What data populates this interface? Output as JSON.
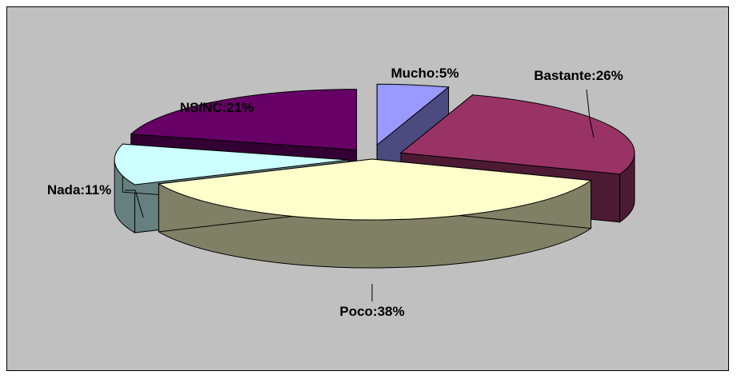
{
  "chart_data": {
    "type": "pie",
    "title": "",
    "three_d": true,
    "exploded": true,
    "legend": "none",
    "slices": [
      {
        "category": "Mucho",
        "value": 5,
        "label": "Mucho:5%",
        "top_color": "#9999ff",
        "side_color": "#4b4b80"
      },
      {
        "category": "Bastante",
        "value": 26,
        "label": "Bastante:26%",
        "top_color": "#993366",
        "side_color": "#4d1a33"
      },
      {
        "category": "Poco",
        "value": 38,
        "label": "Poco:38%",
        "top_color": "#ffffcc",
        "side_color": "#808066"
      },
      {
        "category": "Nada",
        "value": 11,
        "label": "Nada:11%",
        "top_color": "#ccffff",
        "side_color": "#668080"
      },
      {
        "category": "NS/NC",
        "value": 21,
        "label": "NS/NC:21%",
        "top_color": "#660066",
        "side_color": "#330033"
      }
    ],
    "background_color": "#c0c0c0",
    "border_color": "#000000"
  }
}
